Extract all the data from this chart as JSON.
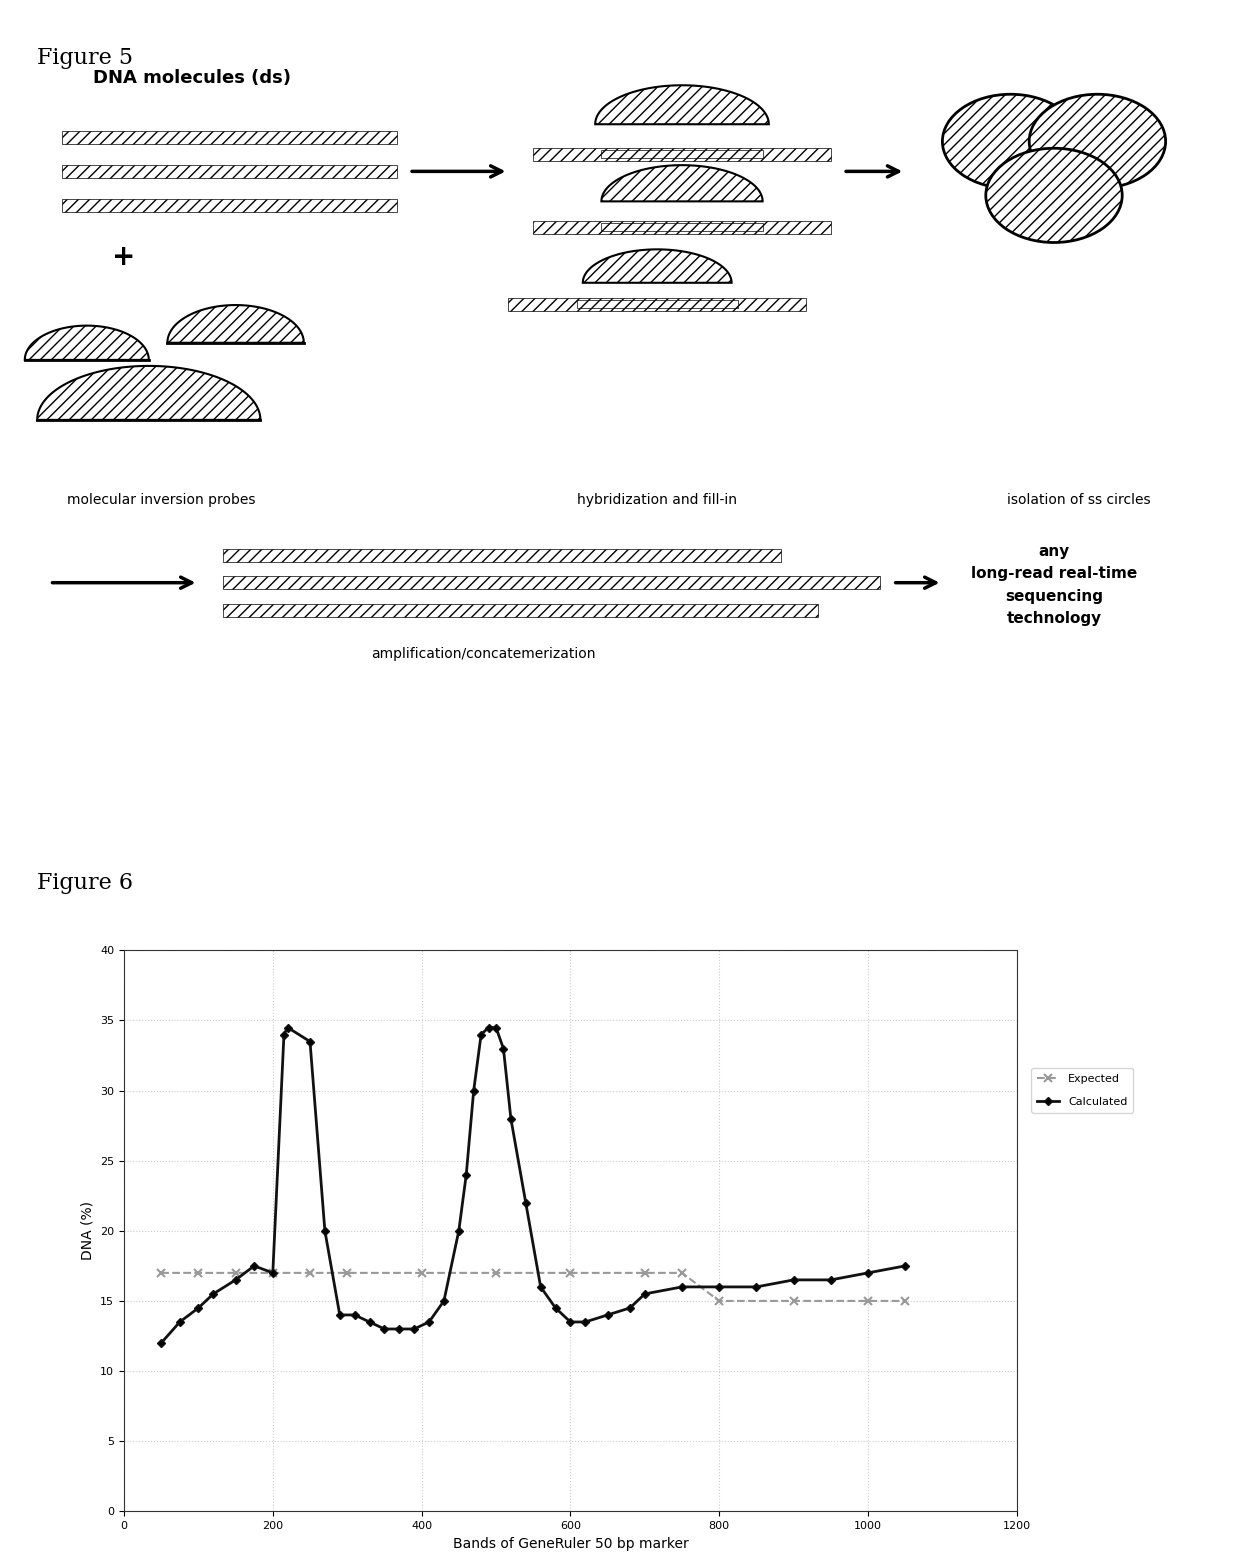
{
  "fig5_title": "Figure 5",
  "fig6_title": "Figure 6",
  "label_dna": "DNA molecules (ds)",
  "label_mip": "molecular inversion probes",
  "label_hyb": "hybridization and fill-in",
  "label_iso": "isolation of ss circles",
  "label_amp": "amplification/concatemerization",
  "label_seq": "any\nlong-read real-time\nsequencing\ntechnology",
  "xlabel": "Bands of GeneRuler 50 bp marker",
  "ylabel": "DNA (%)",
  "ylim": [
    0,
    40
  ],
  "yticks": [
    0,
    5,
    10,
    15,
    20,
    25,
    30,
    35,
    40
  ],
  "xlim": [
    0,
    1200
  ],
  "xticks": [
    0,
    200,
    400,
    600,
    800,
    1000,
    1200
  ],
  "background_color": "#ffffff",
  "grid_color": "#cccccc"
}
